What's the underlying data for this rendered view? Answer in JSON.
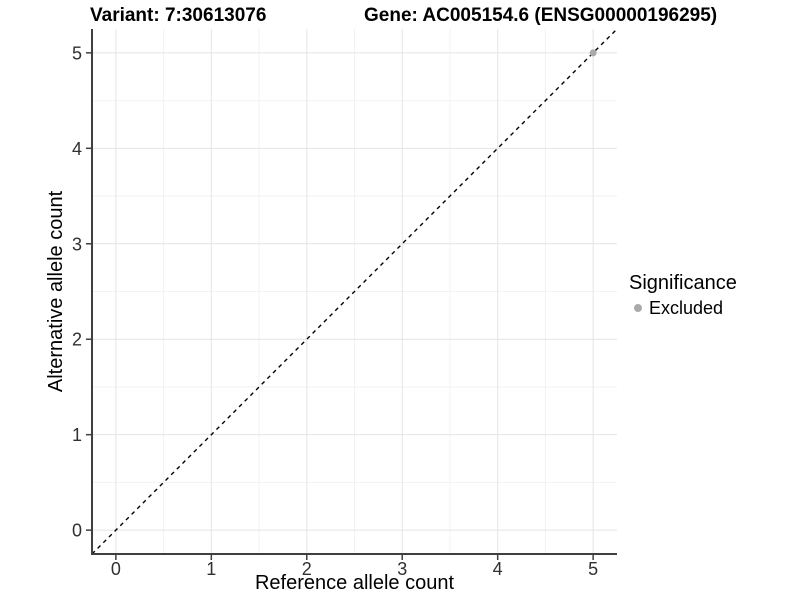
{
  "chart_data": {
    "type": "scatter",
    "title_left": "Variant: 7:30613076",
    "title_right": "Gene: AC005154.6 (ENSG00000196295)",
    "xlabel": "Reference allele count",
    "ylabel": "Alternative allele count",
    "xlim": [
      -0.25,
      5.25
    ],
    "ylim": [
      -0.25,
      5.25
    ],
    "x_ticks": [
      0,
      1,
      2,
      3,
      4,
      5
    ],
    "y_ticks": [
      0,
      1,
      2,
      3,
      4,
      5
    ],
    "grid": {
      "major": true,
      "minor": true
    },
    "reference_line": {
      "type": "identity y=x",
      "slope": 1,
      "intercept": 0,
      "style": "dashed",
      "color": "#000000"
    },
    "series": [
      {
        "name": "Excluded",
        "color": "#aaaaaa",
        "points": [
          [
            5,
            5
          ]
        ]
      }
    ],
    "legend": {
      "title": "Significance",
      "position": "right",
      "entries": [
        {
          "label": "Excluded",
          "color": "#aaaaaa",
          "marker": "circle"
        }
      ]
    }
  },
  "colors": {
    "background": "#ffffff",
    "grid_major": "#e4e4e4",
    "grid_minor": "#f2f2f2",
    "axis_line": "#3f3f3f",
    "tick_label": "#303030",
    "reference_line": "#000000"
  }
}
